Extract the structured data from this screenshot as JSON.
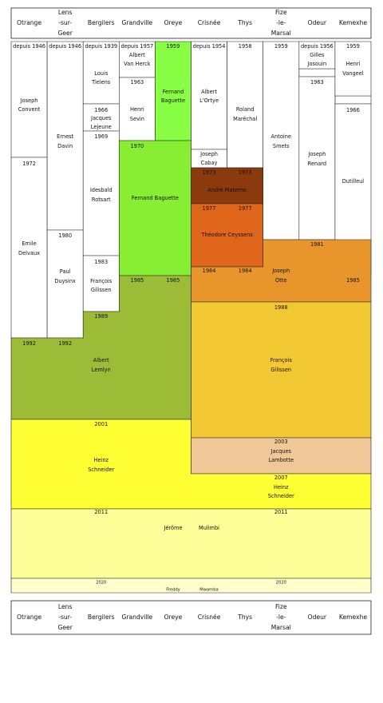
{
  "header": {
    "columns": [
      {
        "lines": [
          "Otrange"
        ]
      },
      {
        "lines": [
          "Lens",
          "-sur-",
          "Geer"
        ]
      },
      {
        "lines": [
          "Bergilers"
        ]
      },
      {
        "lines": [
          "Grandville"
        ]
      },
      {
        "lines": [
          "Oreye"
        ]
      },
      {
        "lines": [
          "Crisnée"
        ]
      },
      {
        "lines": [
          "Thys"
        ]
      },
      {
        "lines": [
          "Fize",
          "-le-",
          "Marsal"
        ]
      },
      {
        "lines": [
          "Odeur"
        ]
      },
      {
        "lines": [
          "Kemexhe"
        ]
      }
    ]
  },
  "blocks": [
    {
      "lines": [
        "depuis 1946",
        "Joseph",
        "Convent"
      ]
    },
    {
      "lines": [
        "1972",
        "Emile",
        "Delvaux"
      ]
    },
    {
      "lines": [
        "depuis 1946",
        "Ernest",
        "Davin"
      ]
    },
    {
      "lines": [
        "1980",
        "Paul",
        "Duysinx"
      ]
    },
    {
      "lines": [
        "depuis 1939",
        "Louis",
        "Tielens"
      ]
    },
    {
      "lines": [
        "1966",
        "Jacques",
        "Lejeune"
      ]
    },
    {
      "lines": [
        "1969",
        "Idesbald",
        "Rotsart"
      ]
    },
    {
      "lines": [
        "1983",
        "François",
        "Gilissen"
      ]
    },
    {
      "lines": [
        "depuis 1957",
        "Albert",
        "Van Herck"
      ]
    },
    {
      "lines": [
        "1963",
        "Henri",
        "Sevin"
      ]
    },
    {
      "lines": [
        "1959",
        "Fernand",
        "Baguette"
      ]
    },
    {
      "lines": [
        "1970",
        "Fernand Baguette"
      ]
    },
    {
      "lines": [
        "depuis 1954",
        "Albert",
        "L'Ortye"
      ]
    },
    {
      "lines": [
        "Joseph",
        "Cabay"
      ]
    },
    {
      "lines": [
        "1958",
        "Roland",
        "Maréchal"
      ]
    },
    {
      "lines": [
        "1973",
        "1973",
        "André Materne"
      ]
    },
    {
      "lines": [
        "1977",
        "1977",
        "Théodore Ceyssens"
      ]
    },
    {
      "lines": [
        "1959",
        "Antoine",
        "Smets"
      ]
    },
    {
      "lines": [
        "depuis 1956",
        "Gilles",
        "Josouin"
      ]
    },
    {
      "lines": [
        "1963",
        "Joseph",
        "Renard"
      ]
    },
    {
      "lines": [
        "1959",
        "Henri",
        "Vangeel"
      ]
    },
    {
      "lines": [
        "1966",
        "Dutilleul"
      ]
    },
    {
      "lines": [
        "1981",
        "Joseph",
        "Otte",
        "1984",
        "1984",
        "1985"
      ]
    },
    {
      "lines": [
        "1985",
        "1985",
        "1989",
        "1992",
        "1992",
        "Albert",
        "Lemlyn"
      ]
    },
    {
      "lines": [
        "1988",
        "François",
        "Gilissen"
      ]
    },
    {
      "lines": [
        "2003",
        "Jacques",
        "Lambotte"
      ]
    },
    {
      "lines": [
        "2001",
        "Heinz",
        "Schneider",
        "2007",
        "Heinz",
        "Schneider"
      ]
    },
    {
      "lines": [
        "2011",
        "2011",
        "Jérôme",
        "Mulimbi"
      ]
    },
    {
      "lines": [
        "2020",
        "2020",
        "Freddy",
        "Mwamba"
      ]
    }
  ],
  "footer": {
    "columns": [
      {
        "lines": [
          "Otrange"
        ]
      },
      {
        "lines": [
          "Lens",
          "-sur-",
          "Geer"
        ]
      },
      {
        "lines": [
          "Bergilers"
        ]
      },
      {
        "lines": [
          "Grandville"
        ]
      },
      {
        "lines": [
          "Oreye"
        ]
      },
      {
        "lines": [
          "Crisnée"
        ]
      },
      {
        "lines": [
          "Thys"
        ]
      },
      {
        "lines": [
          "Fize",
          "-le-",
          "Marsal"
        ]
      },
      {
        "lines": [
          "Odeur"
        ]
      },
      {
        "lines": [
          "Kemexhe"
        ]
      }
    ]
  }
}
